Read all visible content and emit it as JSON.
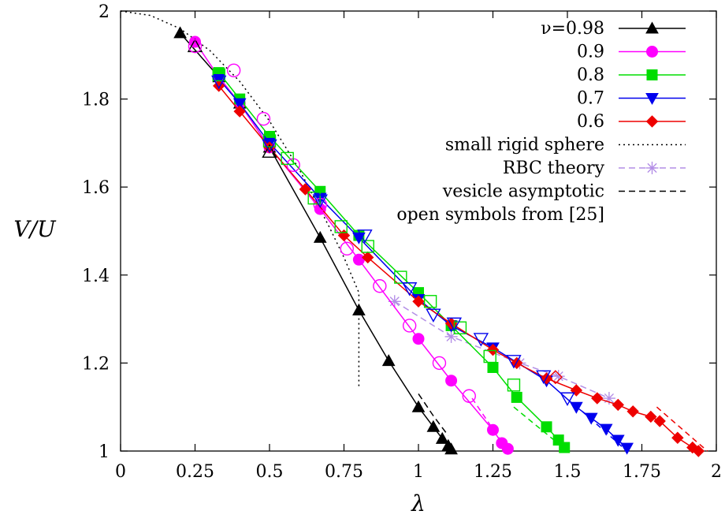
{
  "chart_data": {
    "type": "line",
    "xlabel": "λ",
    "ylabel": "V/U",
    "xlim": [
      0,
      2
    ],
    "ylim": [
      1,
      2
    ],
    "xticks": [
      {
        "v": 0,
        "label": "0"
      },
      {
        "v": 0.25,
        "label": "0.25"
      },
      {
        "v": 0.5,
        "label": "0.5"
      },
      {
        "v": 0.75,
        "label": "0.75"
      },
      {
        "v": 1,
        "label": "1"
      },
      {
        "v": 1.25,
        "label": "1.25"
      },
      {
        "v": 1.5,
        "label": "1.5"
      },
      {
        "v": 1.75,
        "label": "1.75"
      },
      {
        "v": 2,
        "label": "2"
      }
    ],
    "yticks": [
      {
        "v": 1,
        "label": "1"
      },
      {
        "v": 1.2,
        "label": "1.2"
      },
      {
        "v": 1.4,
        "label": "1.4"
      },
      {
        "v": 1.6,
        "label": "1.6"
      },
      {
        "v": 1.8,
        "label": "1.8"
      },
      {
        "v": 2,
        "label": "2"
      }
    ],
    "grid": false,
    "legend_position": "top-right",
    "series": [
      {
        "name": "ν=0.98",
        "color": "#000000",
        "marker": "triangle-up",
        "points": [
          [
            0.2,
            1.95
          ],
          [
            0.33,
            1.85
          ],
          [
            0.4,
            1.79
          ],
          [
            0.5,
            1.69
          ],
          [
            0.67,
            1.485
          ],
          [
            0.8,
            1.32
          ],
          [
            0.9,
            1.205
          ],
          [
            1.0,
            1.1
          ],
          [
            1.05,
            1.055
          ],
          [
            1.08,
            1.028
          ],
          [
            1.1,
            1.012
          ],
          [
            1.11,
            1.004
          ]
        ]
      },
      {
        "name": "0.9",
        "color": "#ff00ff",
        "marker": "circle",
        "points": [
          [
            0.25,
            1.93
          ],
          [
            0.33,
            1.85
          ],
          [
            0.4,
            1.79
          ],
          [
            0.5,
            1.69
          ],
          [
            0.67,
            1.55
          ],
          [
            0.8,
            1.435
          ],
          [
            1.0,
            1.255
          ],
          [
            1.11,
            1.16
          ],
          [
            1.25,
            1.048
          ],
          [
            1.28,
            1.018
          ],
          [
            1.3,
            1.005
          ]
        ]
      },
      {
        "name": "0.8",
        "color": "#00dd00",
        "marker": "square",
        "points": [
          [
            0.33,
            1.86
          ],
          [
            0.4,
            1.8
          ],
          [
            0.5,
            1.715
          ],
          [
            0.67,
            1.59
          ],
          [
            0.8,
            1.49
          ],
          [
            1.0,
            1.36
          ],
          [
            1.11,
            1.285
          ],
          [
            1.25,
            1.19
          ],
          [
            1.33,
            1.122
          ],
          [
            1.43,
            1.055
          ],
          [
            1.47,
            1.025
          ],
          [
            1.49,
            1.008
          ]
        ]
      },
      {
        "name": "0.7",
        "color": "#0000ee",
        "marker": "triangle-down",
        "points": [
          [
            0.33,
            1.845
          ],
          [
            0.4,
            1.79
          ],
          [
            0.5,
            1.7
          ],
          [
            0.67,
            1.575
          ],
          [
            0.8,
            1.485
          ],
          [
            1.0,
            1.345
          ],
          [
            1.11,
            1.285
          ],
          [
            1.25,
            1.235
          ],
          [
            1.43,
            1.16
          ],
          [
            1.53,
            1.1
          ],
          [
            1.58,
            1.075
          ],
          [
            1.63,
            1.05
          ],
          [
            1.67,
            1.025
          ],
          [
            1.7,
            1.007
          ]
        ]
      },
      {
        "name": "0.6",
        "color": "#ee0000",
        "marker": "diamond",
        "points": [
          [
            0.33,
            1.83
          ],
          [
            0.4,
            1.772
          ],
          [
            0.5,
            1.69
          ],
          [
            0.62,
            1.595
          ],
          [
            0.75,
            1.49
          ],
          [
            0.83,
            1.44
          ],
          [
            1.0,
            1.34
          ],
          [
            1.11,
            1.29
          ],
          [
            1.25,
            1.23
          ],
          [
            1.33,
            1.2
          ],
          [
            1.43,
            1.165
          ],
          [
            1.53,
            1.138
          ],
          [
            1.6,
            1.12
          ],
          [
            1.67,
            1.105
          ],
          [
            1.72,
            1.09
          ],
          [
            1.78,
            1.078
          ],
          [
            1.81,
            1.068
          ],
          [
            1.87,
            1.03
          ],
          [
            1.92,
            1.008
          ],
          [
            1.94,
            1.0
          ]
        ]
      }
    ],
    "open_symbols": [
      {
        "marker": "triangle-up",
        "color": "#000000",
        "points": [
          [
            0.25,
            1.92
          ],
          [
            0.5,
            1.68
          ]
        ]
      },
      {
        "marker": "circle",
        "color": "#ff00ff",
        "points": [
          [
            0.25,
            1.92
          ],
          [
            0.38,
            1.865
          ],
          [
            0.48,
            1.755
          ],
          [
            0.58,
            1.65
          ],
          [
            0.67,
            1.56
          ],
          [
            0.76,
            1.46
          ],
          [
            0.87,
            1.375
          ],
          [
            0.97,
            1.285
          ],
          [
            1.07,
            1.2
          ],
          [
            1.17,
            1.125
          ]
        ]
      },
      {
        "marker": "square",
        "color": "#00dd00",
        "points": [
          [
            0.33,
            1.855
          ],
          [
            0.5,
            1.705
          ],
          [
            0.56,
            1.665
          ],
          [
            0.65,
            1.575
          ],
          [
            0.74,
            1.51
          ],
          [
            0.83,
            1.465
          ],
          [
            0.94,
            1.395
          ],
          [
            1.04,
            1.34
          ],
          [
            1.14,
            1.28
          ],
          [
            1.24,
            1.215
          ],
          [
            1.32,
            1.15
          ]
        ]
      },
      {
        "marker": "triangle-down",
        "color": "#0000ee",
        "points": [
          [
            0.33,
            1.84
          ],
          [
            0.5,
            1.695
          ],
          [
            0.67,
            1.57
          ],
          [
            0.82,
            1.49
          ],
          [
            0.97,
            1.37
          ],
          [
            1.05,
            1.31
          ],
          [
            1.12,
            1.29
          ],
          [
            1.21,
            1.255
          ],
          [
            1.32,
            1.205
          ],
          [
            1.42,
            1.17
          ],
          [
            1.5,
            1.12
          ]
        ]
      },
      {
        "marker": "diamond",
        "color": "#ee0000",
        "points": [
          [
            1.46,
            1.168
          ]
        ]
      }
    ],
    "reference_curves": [
      {
        "name": "small rigid sphere",
        "style": "dotted",
        "color": "#000000",
        "points": [
          [
            0,
            2
          ],
          [
            0.1,
            1.99
          ],
          [
            0.2,
            1.96
          ],
          [
            0.3,
            1.91
          ],
          [
            0.4,
            1.84
          ],
          [
            0.5,
            1.75
          ],
          [
            0.6,
            1.64
          ],
          [
            0.7,
            1.51
          ],
          [
            0.75,
            1.44
          ],
          [
            0.8,
            1.36
          ],
          [
            0.8,
            1.145
          ]
        ]
      },
      {
        "name": "RBC theory",
        "style": "dashed",
        "color": "#b38ee6",
        "marker": "asterisk",
        "points": [
          [
            0.92,
            1.34
          ],
          [
            1.11,
            1.26
          ],
          [
            1.34,
            1.2
          ],
          [
            1.47,
            1.17
          ],
          [
            1.64,
            1.12
          ]
        ]
      },
      {
        "name": "vesicle asymptotic",
        "style": "dashed",
        "color": "#000000",
        "points": [
          [
            1.0,
            1.13
          ],
          [
            1.05,
            1.08
          ],
          [
            1.1,
            1.035
          ]
        ]
      }
    ],
    "asymptotic_segments": [
      {
        "color": "#ff00ff",
        "points": [
          [
            1.18,
            1.12
          ],
          [
            1.3,
            1.0
          ]
        ]
      },
      {
        "color": "#00dd00",
        "points": [
          [
            1.32,
            1.1
          ],
          [
            1.5,
            1.0
          ]
        ]
      },
      {
        "color": "#0000ee",
        "points": [
          [
            1.55,
            1.09
          ],
          [
            1.7,
            1.0
          ]
        ]
      },
      {
        "color": "#ee0000",
        "points": [
          [
            1.8,
            1.1
          ],
          [
            1.97,
            1.0
          ]
        ]
      }
    ],
    "legend": {
      "entries": [
        {
          "label": "ν=0.98",
          "color": "#000000",
          "marker": "triangle-up",
          "line": "solid"
        },
        {
          "label": "0.9",
          "color": "#ff00ff",
          "marker": "circle",
          "line": "solid"
        },
        {
          "label": "0.8",
          "color": "#00dd00",
          "marker": "square",
          "line": "solid"
        },
        {
          "label": "0.7",
          "color": "#0000ee",
          "marker": "triangle-down",
          "line": "solid"
        },
        {
          "label": "0.6",
          "color": "#ee0000",
          "marker": "diamond",
          "line": "solid"
        },
        {
          "label": "small rigid sphere",
          "color": "#000000",
          "marker": "none",
          "line": "dotted"
        },
        {
          "label": "RBC theory",
          "color": "#b38ee6",
          "marker": "asterisk",
          "line": "dashed"
        },
        {
          "label": "vesicle asymptotic",
          "color": "#000000",
          "marker": "none",
          "line": "dashed"
        },
        {
          "label": "open symbols from [25]",
          "color": "#000000",
          "marker": "none",
          "line": "none"
        }
      ]
    }
  }
}
